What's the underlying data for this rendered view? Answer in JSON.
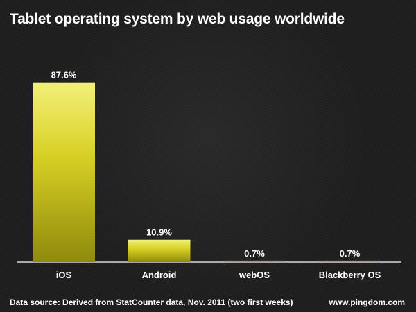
{
  "chart_data": {
    "type": "bar",
    "title": "Tablet operating system by web usage worldwide",
    "categories": [
      "iOS",
      "Android",
      "webOS",
      "Blackberry OS"
    ],
    "values": [
      87.6,
      10.9,
      0.7,
      0.7
    ],
    "value_labels": [
      "87.6%",
      "10.9%",
      "0.7%",
      "0.7%"
    ],
    "ylim": [
      0,
      100
    ],
    "xlabel": "",
    "ylabel": "",
    "grid": false,
    "legend": "none",
    "colors": {
      "bar_top": "#f3f07a",
      "bar_mid": "#d9d126",
      "bar_bottom": "#8f8a0c",
      "text": "#ffffff",
      "baseline": "#d7d7d7"
    }
  },
  "footer": {
    "source": "Data source: Derived from StatCounter data, Nov. 2011 (two first weeks)",
    "site": "www.pingdom.com"
  }
}
